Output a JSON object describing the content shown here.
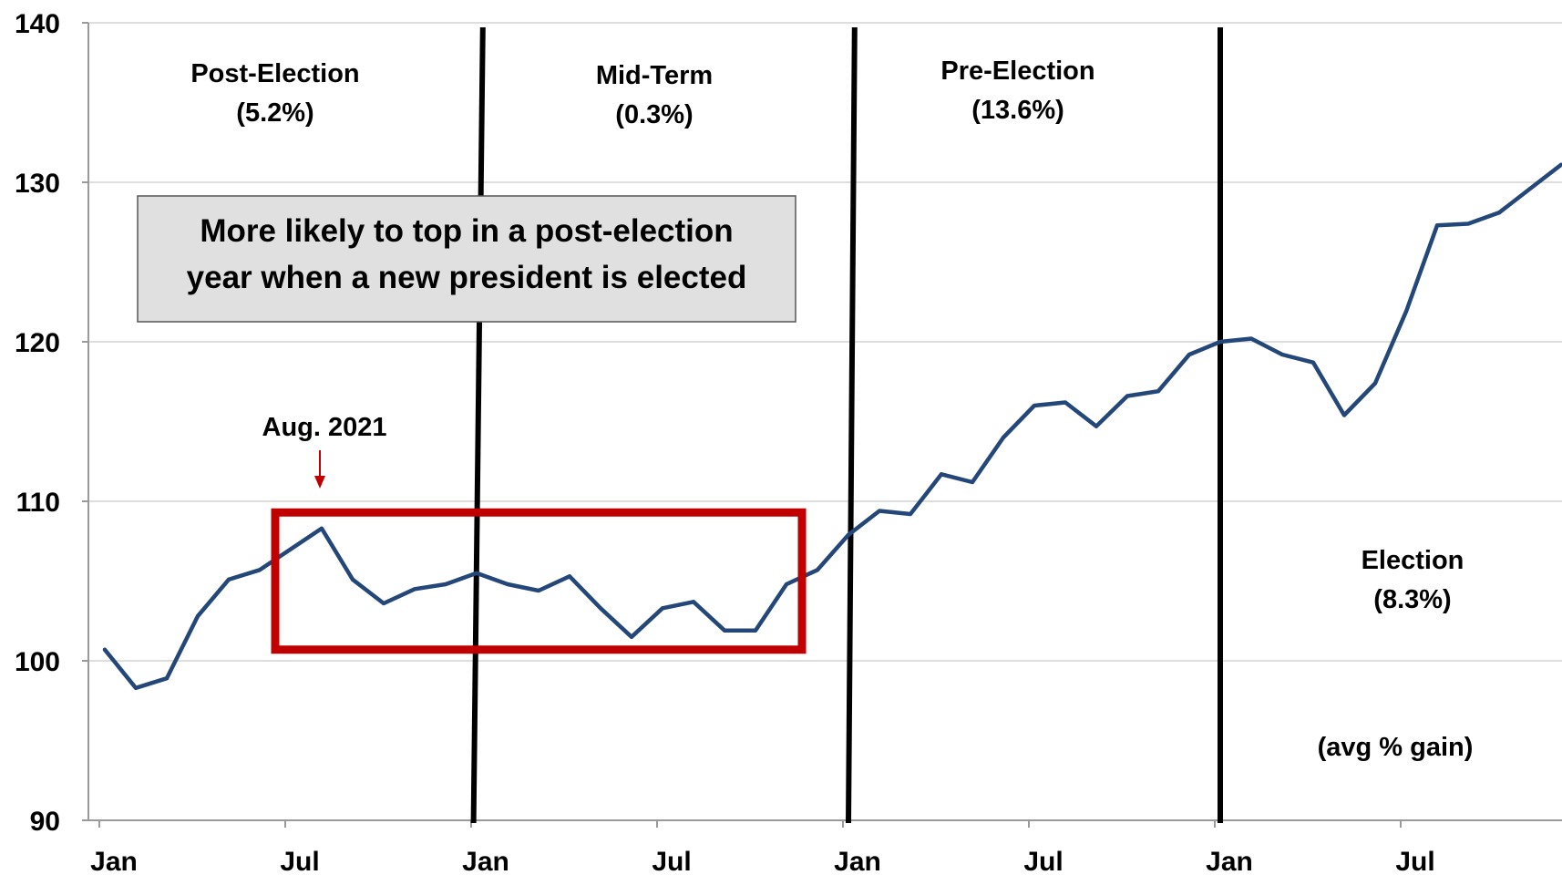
{
  "chart_data": {
    "type": "line",
    "title": "",
    "xlabel": "",
    "ylabel": "",
    "ylim": [
      90,
      140
    ],
    "y_ticks": [
      90,
      100,
      110,
      120,
      130,
      140
    ],
    "x_tick_labels": [
      "Jan",
      "Jul",
      "Jan",
      "Jul",
      "Jan",
      "Jul",
      "Jan",
      "Jul"
    ],
    "x_tick_months": [
      1,
      7,
      13,
      19,
      25,
      31,
      37,
      43
    ],
    "grid": "horizontal",
    "line_color": "#24477A",
    "series": [
      {
        "x": [
          1,
          2,
          3,
          4,
          5,
          6,
          7,
          8,
          9,
          10,
          11,
          12,
          13,
          14,
          15,
          16,
          17,
          18,
          19,
          20,
          21,
          22,
          23,
          24,
          25,
          26,
          27,
          28,
          29,
          30,
          31,
          32,
          33,
          34,
          35,
          36,
          37,
          38,
          39,
          40,
          41,
          42,
          43,
          44,
          45,
          46,
          47,
          48
        ],
        "values": [
          100.7,
          98.3,
          98.9,
          102.8,
          105.1,
          105.7,
          107.0,
          108.3,
          105.1,
          103.6,
          104.5,
          104.8,
          105.5,
          104.8,
          104.4,
          105.3,
          103.3,
          101.5,
          103.3,
          103.7,
          101.9,
          101.9,
          104.8,
          105.7,
          107.9,
          109.4,
          109.2,
          111.7,
          111.2,
          114.0,
          116.0,
          116.2,
          114.7,
          116.6,
          116.9,
          119.2,
          120.0,
          120.2,
          119.2,
          118.7,
          115.4,
          117.4,
          121.9,
          127.3,
          127.4,
          128.1,
          129.6,
          131.1
        ]
      }
    ],
    "cycle_dividers": [
      {
        "top_month": 13.2,
        "bottom_month": 12.9
      },
      {
        "top_month": 25.2,
        "bottom_month": 25.0
      },
      {
        "top_month": 37.0,
        "bottom_month": 37.0
      }
    ],
    "regions": [
      {
        "name": "Post-Election",
        "gain": "(5.2%)"
      },
      {
        "name": "Mid-Term",
        "gain": "(0.3%)"
      },
      {
        "name": "Pre-Election",
        "gain": "(13.6%)"
      },
      {
        "name": "Election",
        "gain": "(8.3%)"
      }
    ],
    "callout_box": {
      "line1": "More likely to top in a post-election",
      "line2": "year when a new president is elected",
      "fill": "#E0E0E0"
    },
    "highlight_box": {
      "x_range": [
        6.5,
        23.5
      ],
      "y_range": [
        100.7,
        109.3
      ],
      "color": "#C00000"
    },
    "marker_annotation": {
      "label": "Aug. 2021",
      "month": 8,
      "color": "#C00000"
    },
    "note": "(avg % gain)"
  }
}
